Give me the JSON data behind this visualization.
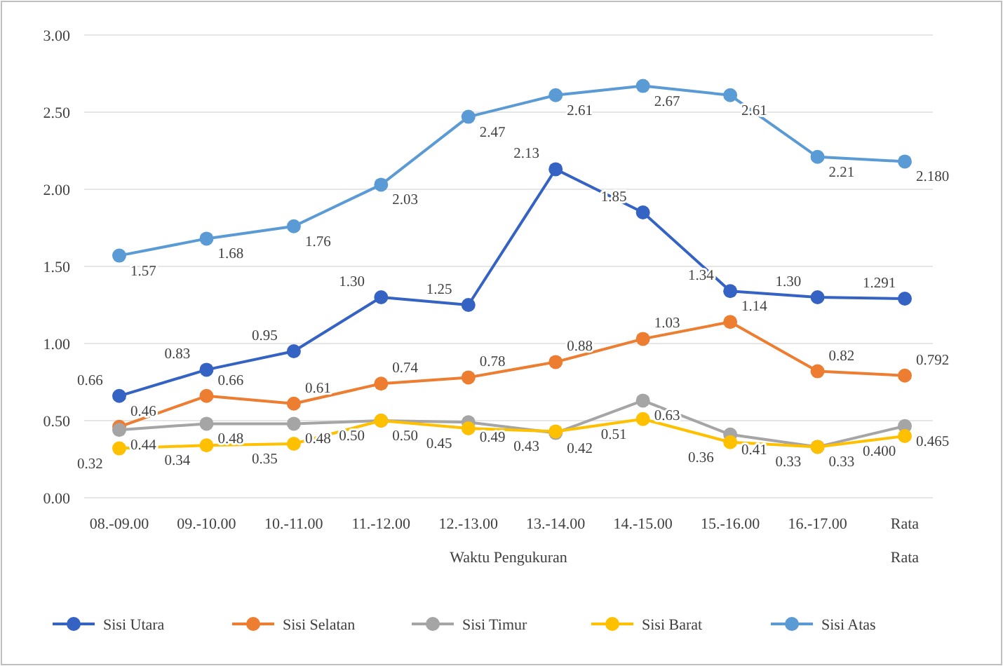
{
  "chart_data": {
    "type": "line",
    "xlabel": "Waktu Pengukuran",
    "categories": [
      "08.-09.00",
      "09.-10.00",
      "10.-11.00",
      "11.-12.00",
      "12.-13.00",
      "13.-14.00",
      "14.-15.00",
      "15.-16.00",
      "16.-17.00",
      "Rata Rata"
    ],
    "ylim": [
      0,
      3
    ],
    "yticks": [
      {
        "value": 0,
        "label": "0.00"
      },
      {
        "value": 0.5,
        "label": "0.50"
      },
      {
        "value": 1,
        "label": "1.00"
      },
      {
        "value": 1.5,
        "label": "1.50"
      },
      {
        "value": 2,
        "label": "2.00"
      },
      {
        "value": 2.5,
        "label": "2.50"
      },
      {
        "value": 3,
        "label": "3.00"
      }
    ],
    "grid": "y",
    "legend": "bottom",
    "marker": "circle",
    "line_style": "solid",
    "series": [
      {
        "name": "Sisi Utara",
        "color": "#3563c4",
        "values": [
          0.66,
          0.83,
          0.95,
          1.3,
          1.25,
          2.13,
          1.85,
          1.34,
          1.3,
          1.291
        ],
        "value_labels": [
          "0.66",
          "0.83",
          "0.95",
          "1.30",
          "1.25",
          "2.13",
          "1.85",
          "1.34",
          "1.30",
          "1.291"
        ]
      },
      {
        "name": "Sisi Selatan",
        "color": "#ed7d31",
        "values": [
          0.46,
          0.66,
          0.61,
          0.74,
          0.78,
          0.88,
          1.03,
          1.14,
          0.82,
          0.792
        ],
        "value_labels": [
          "0.46",
          "0.66",
          "0.61",
          "0.74",
          "0.78",
          "0.88",
          "1.03",
          "1.14",
          "0.82",
          "0.792"
        ]
      },
      {
        "name": "Sisi Timur",
        "color": "#a5a5a5",
        "values": [
          0.44,
          0.48,
          0.48,
          0.5,
          0.49,
          0.42,
          0.63,
          0.41,
          0.33,
          0.465
        ],
        "value_labels": [
          "0.44",
          "0.48",
          "0.48",
          "0.50",
          "0.49",
          "0.42",
          "0.63",
          "0.41",
          "0.33",
          "0.465"
        ]
      },
      {
        "name": "Sisi Barat",
        "color": "#ffc000",
        "values": [
          0.32,
          0.34,
          0.35,
          0.5,
          0.45,
          0.43,
          0.51,
          0.36,
          0.33,
          0.4
        ],
        "value_labels": [
          "0.32",
          "0.34",
          "0.35",
          "0.50",
          "0.45",
          "0.43",
          "0.51",
          "0.36",
          "0.33",
          "0.400"
        ]
      },
      {
        "name": "Sisi Atas",
        "color": "#5b9bd5",
        "values": [
          1.57,
          1.68,
          1.76,
          2.03,
          2.47,
          2.61,
          2.67,
          2.61,
          2.21,
          2.18
        ],
        "value_labels": [
          "1.57",
          "1.68",
          "1.76",
          "2.03",
          "2.47",
          "2.61",
          "2.67",
          "2.61",
          "2.21",
          "2.180"
        ]
      }
    ]
  }
}
